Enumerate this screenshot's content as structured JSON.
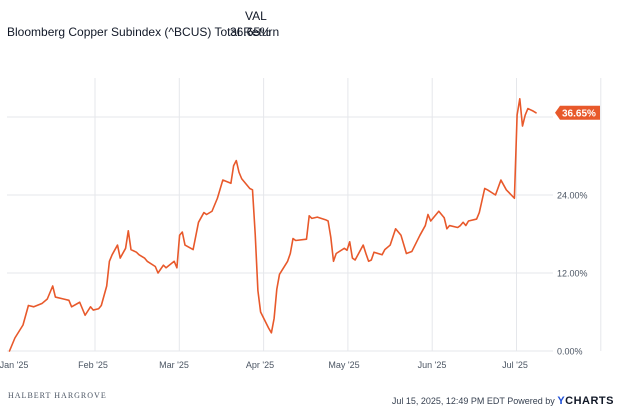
{
  "legend": {
    "column_header": "VAL",
    "series_name": "Bloomberg Copper Subindex (^BCUS) Total Return",
    "series_value": "36.65%"
  },
  "footer": {
    "brand": "HALBERT HARGROVE",
    "timestamp_powered": "Jul 15, 2025, 12:49 PM EDT Powered by",
    "logo_y": "Y",
    "logo_rest": "CHARTS"
  },
  "colors": {
    "series": "#e8592b",
    "grid": "#e5e7eb",
    "axis_text": "#4b5563"
  },
  "chart_data": {
    "type": "line",
    "title": "",
    "xlabel": "",
    "ylabel": "",
    "x_ticks": [
      "Jan '25",
      "Feb '25",
      "Mar '25",
      "Apr '25",
      "May '25",
      "Jun '25",
      "Jul '25"
    ],
    "y_ticks": [
      "0.00%",
      "12.00%",
      "24.00%"
    ],
    "ylim": [
      0,
      42
    ],
    "grid": true,
    "last_value_label": "36.65%",
    "series": [
      {
        "values": [
          [
            "2025-01-01",
            0.0
          ],
          [
            "2025-01-03",
            2.0
          ],
          [
            "2025-01-06",
            4.0
          ],
          [
            "2025-01-08",
            7.0
          ],
          [
            "2025-01-10",
            6.8
          ],
          [
            "2025-01-13",
            7.3
          ],
          [
            "2025-01-15",
            8.0
          ],
          [
            "2025-01-17",
            10.0
          ],
          [
            "2025-01-18",
            8.3
          ],
          [
            "2025-01-21",
            8.0
          ],
          [
            "2025-01-23",
            7.8
          ],
          [
            "2025-01-24",
            6.8
          ],
          [
            "2025-01-27",
            7.5
          ],
          [
            "2025-01-28",
            6.5
          ],
          [
            "2025-01-29",
            5.5
          ],
          [
            "2025-01-31",
            6.8
          ],
          [
            "2025-02-01",
            6.3
          ],
          [
            "2025-02-03",
            6.5
          ],
          [
            "2025-02-04",
            7.0
          ],
          [
            "2025-02-06",
            10.0
          ],
          [
            "2025-02-07",
            13.8
          ],
          [
            "2025-02-08",
            14.8
          ],
          [
            "2025-02-10",
            16.3
          ],
          [
            "2025-02-11",
            14.3
          ],
          [
            "2025-02-13",
            15.8
          ],
          [
            "2025-02-14",
            18.5
          ],
          [
            "2025-02-15",
            15.6
          ],
          [
            "2025-02-17",
            15.2
          ],
          [
            "2025-02-18",
            14.8
          ],
          [
            "2025-02-20",
            14.3
          ],
          [
            "2025-02-21",
            13.8
          ],
          [
            "2025-02-24",
            13.0
          ],
          [
            "2025-02-25",
            12.0
          ],
          [
            "2025-02-27",
            13.2
          ],
          [
            "2025-02-28",
            12.8
          ],
          [
            "2025-03-03",
            13.8
          ],
          [
            "2025-03-04",
            12.8
          ],
          [
            "2025-03-05",
            17.8
          ],
          [
            "2025-03-06",
            18.3
          ],
          [
            "2025-03-07",
            16.3
          ],
          [
            "2025-03-10",
            15.6
          ],
          [
            "2025-03-12",
            19.8
          ],
          [
            "2025-03-14",
            21.3
          ],
          [
            "2025-03-15",
            21.0
          ],
          [
            "2025-03-17",
            21.5
          ],
          [
            "2025-03-19",
            23.5
          ],
          [
            "2025-03-21",
            26.3
          ],
          [
            "2025-03-24",
            25.8
          ],
          [
            "2025-03-25",
            28.5
          ],
          [
            "2025-03-26",
            29.3
          ],
          [
            "2025-03-27",
            27.5
          ],
          [
            "2025-03-28",
            26.5
          ],
          [
            "2025-03-31",
            25.0
          ],
          [
            "2025-04-01",
            24.8
          ],
          [
            "2025-04-02",
            18.0
          ],
          [
            "2025-04-03",
            9.3
          ],
          [
            "2025-04-04",
            6.0
          ],
          [
            "2025-04-07",
            3.5
          ],
          [
            "2025-04-08",
            2.8
          ],
          [
            "2025-04-09",
            5.0
          ],
          [
            "2025-04-10",
            9.5
          ],
          [
            "2025-04-11",
            11.8
          ],
          [
            "2025-04-14",
            13.8
          ],
          [
            "2025-04-15",
            15.0
          ],
          [
            "2025-04-16",
            17.3
          ],
          [
            "2025-04-17",
            17.0
          ],
          [
            "2025-04-21",
            17.2
          ],
          [
            "2025-04-22",
            20.8
          ],
          [
            "2025-04-23",
            20.4
          ],
          [
            "2025-04-25",
            20.6
          ],
          [
            "2025-04-28",
            20.2
          ],
          [
            "2025-04-29",
            20.0
          ],
          [
            "2025-04-30",
            17.5
          ],
          [
            "2025-05-01",
            13.8
          ],
          [
            "2025-05-02",
            15.0
          ],
          [
            "2025-05-05",
            15.8
          ],
          [
            "2025-05-06",
            15.5
          ],
          [
            "2025-05-07",
            16.8
          ],
          [
            "2025-05-08",
            14.3
          ],
          [
            "2025-05-09",
            14.0
          ],
          [
            "2025-05-12",
            16.3
          ],
          [
            "2025-05-13",
            15.0
          ],
          [
            "2025-05-14",
            13.8
          ],
          [
            "2025-05-15",
            14.0
          ],
          [
            "2025-05-16",
            15.2
          ],
          [
            "2025-05-19",
            14.8
          ],
          [
            "2025-05-20",
            15.6
          ],
          [
            "2025-05-22",
            16.3
          ],
          [
            "2025-05-24",
            18.8
          ],
          [
            "2025-05-26",
            17.8
          ],
          [
            "2025-05-28",
            15.0
          ],
          [
            "2025-05-30",
            15.3
          ],
          [
            "2025-06-02",
            17.8
          ],
          [
            "2025-06-04",
            19.3
          ],
          [
            "2025-06-05",
            21.0
          ],
          [
            "2025-06-06",
            20.0
          ],
          [
            "2025-06-09",
            21.5
          ],
          [
            "2025-06-11",
            20.5
          ],
          [
            "2025-06-12",
            18.8
          ],
          [
            "2025-06-13",
            19.3
          ],
          [
            "2025-06-16",
            19.0
          ],
          [
            "2025-06-17",
            19.3
          ],
          [
            "2025-06-18",
            19.8
          ],
          [
            "2025-06-19",
            19.3
          ],
          [
            "2025-06-20",
            20.0
          ],
          [
            "2025-06-23",
            20.3
          ],
          [
            "2025-06-24",
            21.3
          ],
          [
            "2025-06-26",
            25.0
          ],
          [
            "2025-06-27",
            24.8
          ],
          [
            "2025-06-30",
            24.0
          ],
          [
            "2025-07-02",
            26.3
          ],
          [
            "2025-07-04",
            24.8
          ],
          [
            "2025-07-07",
            23.5
          ],
          [
            "2025-07-08",
            36.3
          ],
          [
            "2025-07-09",
            38.8
          ],
          [
            "2025-07-10",
            34.6
          ],
          [
            "2025-07-11",
            36.3
          ],
          [
            "2025-07-12",
            37.3
          ],
          [
            "2025-07-14",
            36.9
          ],
          [
            "2025-07-15",
            36.65
          ]
        ]
      }
    ]
  }
}
